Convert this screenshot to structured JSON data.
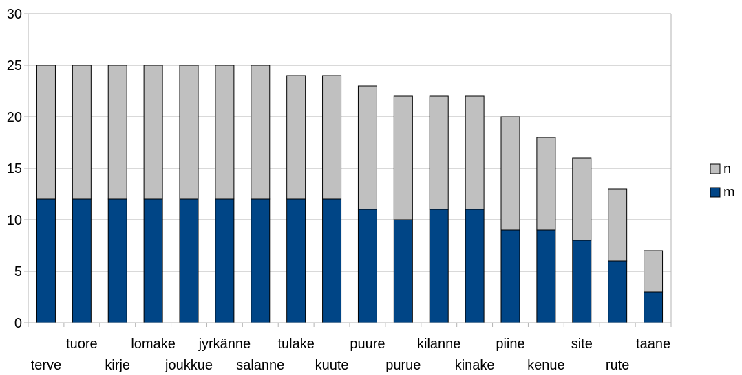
{
  "chart_data": {
    "type": "bar",
    "stacked": true,
    "title": "",
    "xlabel": "",
    "ylabel": "",
    "ylim": [
      0,
      30
    ],
    "yticks": [
      0,
      5,
      10,
      15,
      20,
      25,
      30
    ],
    "grid": true,
    "legend_position": "right",
    "categories": [
      "terve",
      "tuore",
      "kirje",
      "lomake",
      "joukkue",
      "jyrkänne",
      "salanne",
      "tulake",
      "kuute",
      "puure",
      "purue",
      "kilanne",
      "kinake",
      "piine",
      "kenue",
      "site",
      "rute",
      "taane"
    ],
    "series": [
      {
        "name": "m",
        "color": "#004586",
        "values": [
          12,
          12,
          12,
          12,
          12,
          12,
          12,
          12,
          12,
          11,
          10,
          11,
          11,
          9,
          9,
          8,
          6,
          3
        ]
      },
      {
        "name": "n",
        "color": "#c0c0c0",
        "values": [
          13,
          13,
          13,
          13,
          13,
          13,
          13,
          12,
          12,
          12,
          12,
          11,
          11,
          11,
          9,
          8,
          7,
          4
        ]
      }
    ]
  }
}
